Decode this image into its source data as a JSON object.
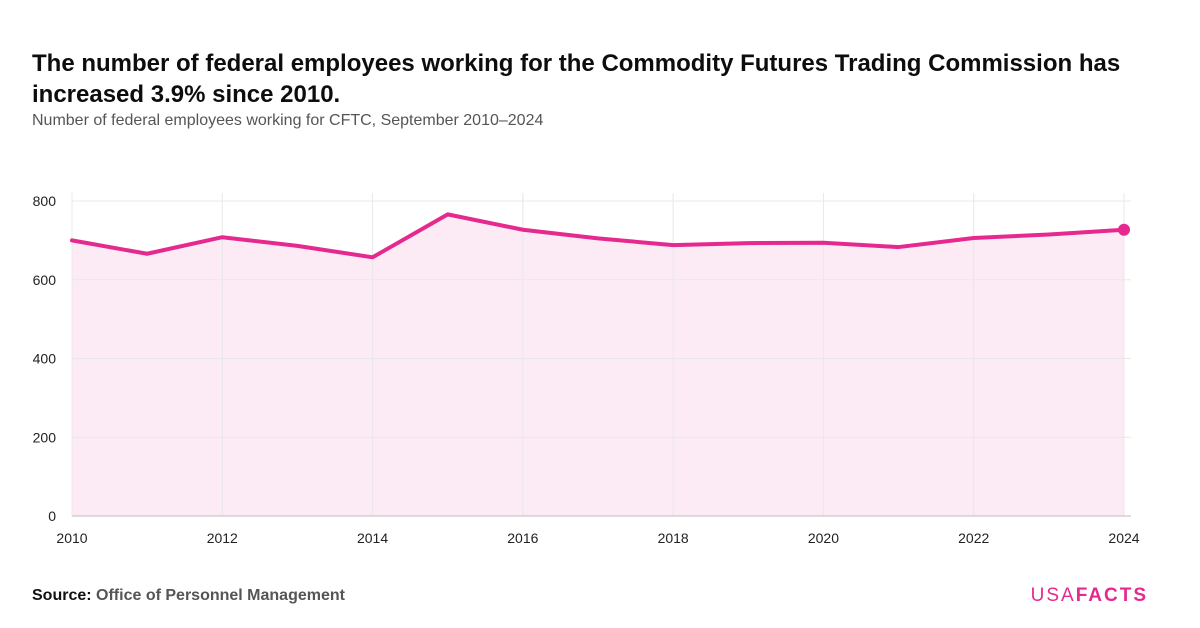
{
  "header": {
    "title": "The number of federal employees working for the Commodity Futures Trading Commission has increased 3.9% since 2010.",
    "subtitle": "Number of federal employees working for CFTC, September 2010–2024"
  },
  "footer": {
    "source_label": "Source:",
    "source_name": "Office of Personnel Management",
    "logo_light": "USA",
    "logo_bold": "FACTS"
  },
  "colors": {
    "line": "#e5298e",
    "area": "#fcebf4",
    "grid": "#e8e8e8"
  },
  "chart_data": {
    "type": "area",
    "x": [
      2010,
      2011,
      2012,
      2013,
      2014,
      2015,
      2016,
      2017,
      2018,
      2019,
      2020,
      2021,
      2022,
      2023,
      2024
    ],
    "series": [
      {
        "values": [
          700,
          666,
          708,
          686,
          657,
          766,
          727,
          705,
          688,
          693,
          694,
          683,
          706,
          715,
          727
        ]
      }
    ],
    "xticks": [
      "2010",
      "2012",
      "2014",
      "2016",
      "2018",
      "2020",
      "2022",
      "2024"
    ],
    "yticks": [
      "0",
      "200",
      "400",
      "600",
      "800"
    ],
    "xlim": [
      2010,
      2024
    ],
    "ylim": [
      0,
      800
    ],
    "grid": true,
    "highlight_last_point": true,
    "xlabel": "",
    "ylabel": ""
  }
}
